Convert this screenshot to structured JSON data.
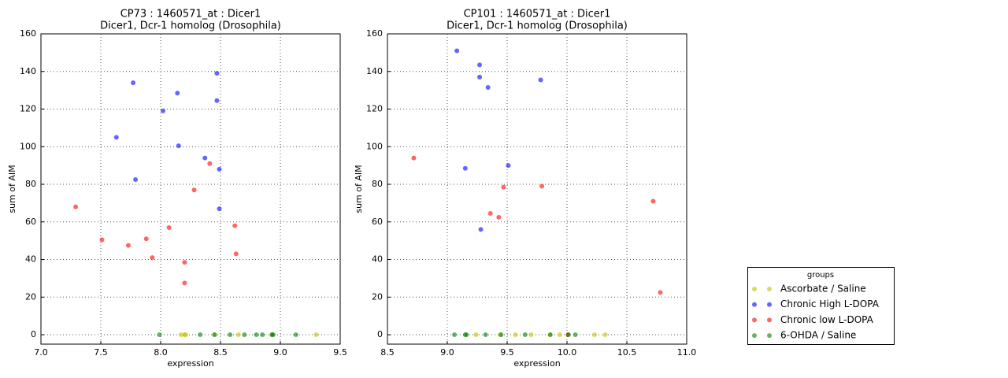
{
  "chart_data": [
    {
      "type": "scatter",
      "title": "CP73 : 1460571_at : Dicer1",
      "subtitle": "Dicer1, Dcr-1 homolog (Drosophila)",
      "x_label": "expression",
      "y_label": "sum of AIM",
      "xlim": [
        7,
        9.5
      ],
      "ylim": [
        -5,
        160
      ],
      "xticks": [
        {
          "value": 7,
          "label": "7.0"
        },
        7.5,
        {
          "value": 8,
          "label": "8.0"
        },
        8.5,
        {
          "value": 9,
          "label": "9.0"
        },
        9.5
      ],
      "yticks": [
        0,
        20,
        40,
        60,
        80,
        100,
        120,
        140,
        160
      ],
      "grid": true,
      "series": [
        {
          "x": [
            8.17,
            8.2,
            8.21,
            8.45,
            8.65,
            8.93,
            9.3
          ],
          "values": [
            0,
            0,
            0,
            0,
            0,
            0,
            0
          ]
        },
        {
          "x": [
            7.63,
            7.77,
            7.79,
            8.02,
            8.14,
            8.15,
            8.37,
            8.47,
            8.47,
            8.49,
            8.49
          ],
          "values": [
            105,
            134,
            82.5,
            119,
            128.5,
            100.5,
            94,
            139,
            124.5,
            88,
            67
          ]
        },
        {
          "x": [
            7.29,
            7.51,
            7.73,
            7.88,
            7.93,
            8.07,
            8.2,
            8.2,
            8.28,
            8.41,
            8.62,
            8.63
          ],
          "values": [
            68,
            50.5,
            47.5,
            51,
            41,
            57,
            38.5,
            27.5,
            77,
            91,
            58,
            43
          ]
        },
        {
          "x": [
            7.99,
            8.33,
            8.45,
            8.58,
            8.7,
            8.8,
            8.85,
            8.93,
            8.94,
            9.13
          ],
          "values": [
            0,
            0,
            0,
            0,
            0,
            0,
            0,
            0,
            0,
            0
          ]
        }
      ]
    },
    {
      "type": "scatter",
      "title": "CP101 : 1460571_at : Dicer1",
      "subtitle": "Dicer1, Dcr-1 homolog (Drosophila)",
      "x_label": "expression",
      "y_label": "sum of AIM",
      "xlim": [
        8.5,
        11
      ],
      "ylim": [
        -5,
        160
      ],
      "xticks": [
        8.5,
        {
          "value": 9,
          "label": "9.0"
        },
        9.5,
        {
          "value": 10,
          "label": "10.0"
        },
        10.5,
        {
          "value": 11,
          "label": "11.0"
        }
      ],
      "yticks": [
        0,
        20,
        40,
        60,
        80,
        100,
        120,
        140,
        160
      ],
      "grid": true,
      "series": [
        {
          "x": [
            9.24,
            9.44,
            9.57,
            9.7,
            9.86,
            9.94,
            10.23,
            10.32
          ],
          "values": [
            0,
            0,
            0,
            0,
            0,
            0,
            0,
            0
          ]
        },
        {
          "x": [
            9.08,
            9.27,
            9.27,
            9.34,
            9.78,
            9.15,
            9.51,
            9.28
          ],
          "values": [
            151,
            143.5,
            137,
            131.5,
            135.5,
            88.5,
            90,
            56
          ]
        },
        {
          "x": [
            8.72,
            9.47,
            9.79,
            9.36,
            9.43,
            10.72,
            10.78,
            10.01
          ],
          "values": [
            94,
            78.5,
            79,
            64.5,
            62.5,
            71,
            22.5,
            0
          ]
        },
        {
          "x": [
            9.06,
            9.15,
            9.16,
            9.32,
            9.45,
            9.65,
            9.86,
            10.01,
            10.07
          ],
          "values": [
            0,
            0,
            0,
            0,
            0,
            0,
            0,
            0,
            0
          ]
        }
      ]
    }
  ],
  "legend": {
    "title": "groups",
    "entries": [
      {
        "name": "Ascorbate / Saline",
        "color": "#bfbf00"
      },
      {
        "name": "Chronic High L-DOPA",
        "color": "#0000ff"
      },
      {
        "name": "Chronic low L-DOPA",
        "color": "#ff0000"
      },
      {
        "name": "6-OHDA / Saline",
        "color": "#008000"
      }
    ]
  }
}
